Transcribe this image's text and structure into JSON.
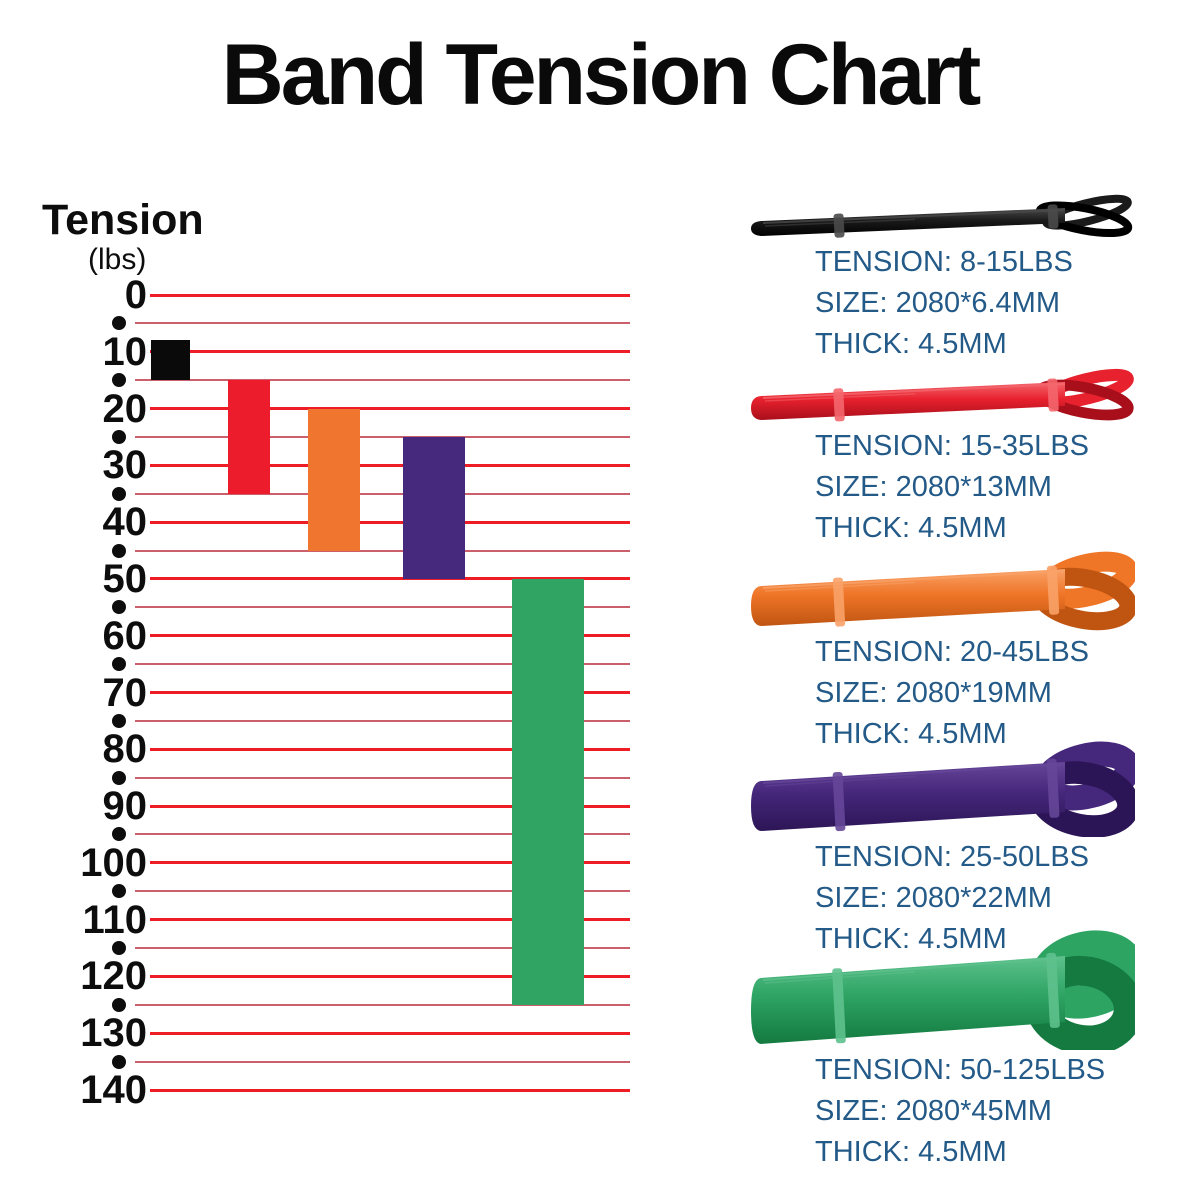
{
  "title": "Band Tension Chart",
  "axis": {
    "label": "Tension",
    "unit": "(lbs)",
    "min": 0,
    "max": 140,
    "major_step": 10,
    "minor_step": 5
  },
  "colors": {
    "grid_major": "#ee1c25",
    "grid_minor": "#cb5f6c",
    "spec_text": "#245a88",
    "tick_text": "#0d0d0d"
  },
  "chart_data": {
    "type": "bar",
    "subtype": "floating-range-columns",
    "title": "Band Tension Chart",
    "ylabel": "Tension (lbs)",
    "ylim": [
      0,
      140
    ],
    "y_major_ticks": [
      0,
      10,
      20,
      30,
      40,
      50,
      60,
      70,
      80,
      90,
      100,
      110,
      120,
      130,
      140
    ],
    "y_minor_tick_step": 5,
    "grid": "horizontal red lines every 5 lbs; bright thick at 10s, muted thin at 5s",
    "legend_position": "none",
    "series": [
      {
        "name": "black-band",
        "label": "8-15LBS",
        "low": 8,
        "high": 15,
        "color": "#0a0a0a"
      },
      {
        "name": "red-band",
        "label": "15-35LBS",
        "low": 15,
        "high": 35,
        "color": "#ed1c2c"
      },
      {
        "name": "orange-band",
        "label": "20-45LBS",
        "low": 20,
        "high": 45,
        "color": "#f0752f"
      },
      {
        "name": "purple-band",
        "label": "25-50LBS",
        "low": 25,
        "high": 50,
        "color": "#46287c"
      },
      {
        "name": "green-band",
        "label": "50-125LBS",
        "low": 50,
        "high": 125,
        "color": "#2fa463"
      }
    ]
  },
  "bands": [
    {
      "id": "black",
      "tension": "TENSION: 8-15LBS",
      "size": "SIZE: 2080*6.4MM",
      "thick": "THICK: 4.5MM",
      "color": "#1a1a1a",
      "color_light": "#4a4a4a",
      "color_dark": "#000000"
    },
    {
      "id": "red",
      "tension": "TENSION: 15-35LBS",
      "size": "SIZE: 2080*13MM",
      "thick": "THICK: 4.5MM",
      "color": "#e8212e",
      "color_light": "#f4666d",
      "color_dark": "#a80f1b"
    },
    {
      "id": "orange",
      "tension": "TENSION: 20-45LBS",
      "size": "SIZE: 2080*19MM",
      "thick": "THICK: 4.5MM",
      "color": "#ef7527",
      "color_light": "#f9a268",
      "color_dark": "#c05512"
    },
    {
      "id": "purple",
      "tension": "TENSION: 25-50LBS",
      "size": "SIZE: 2080*22MM",
      "thick": "THICK: 4.5MM",
      "color": "#45277b",
      "color_light": "#654698",
      "color_dark": "#2c1556"
    },
    {
      "id": "green",
      "tension": "TENSION: 50-125LBS",
      "size": "SIZE: 2080*45MM",
      "thick": "THICK: 4.5MM",
      "color": "#2ea463",
      "color_light": "#5ec18d",
      "color_dark": "#147a40"
    }
  ]
}
